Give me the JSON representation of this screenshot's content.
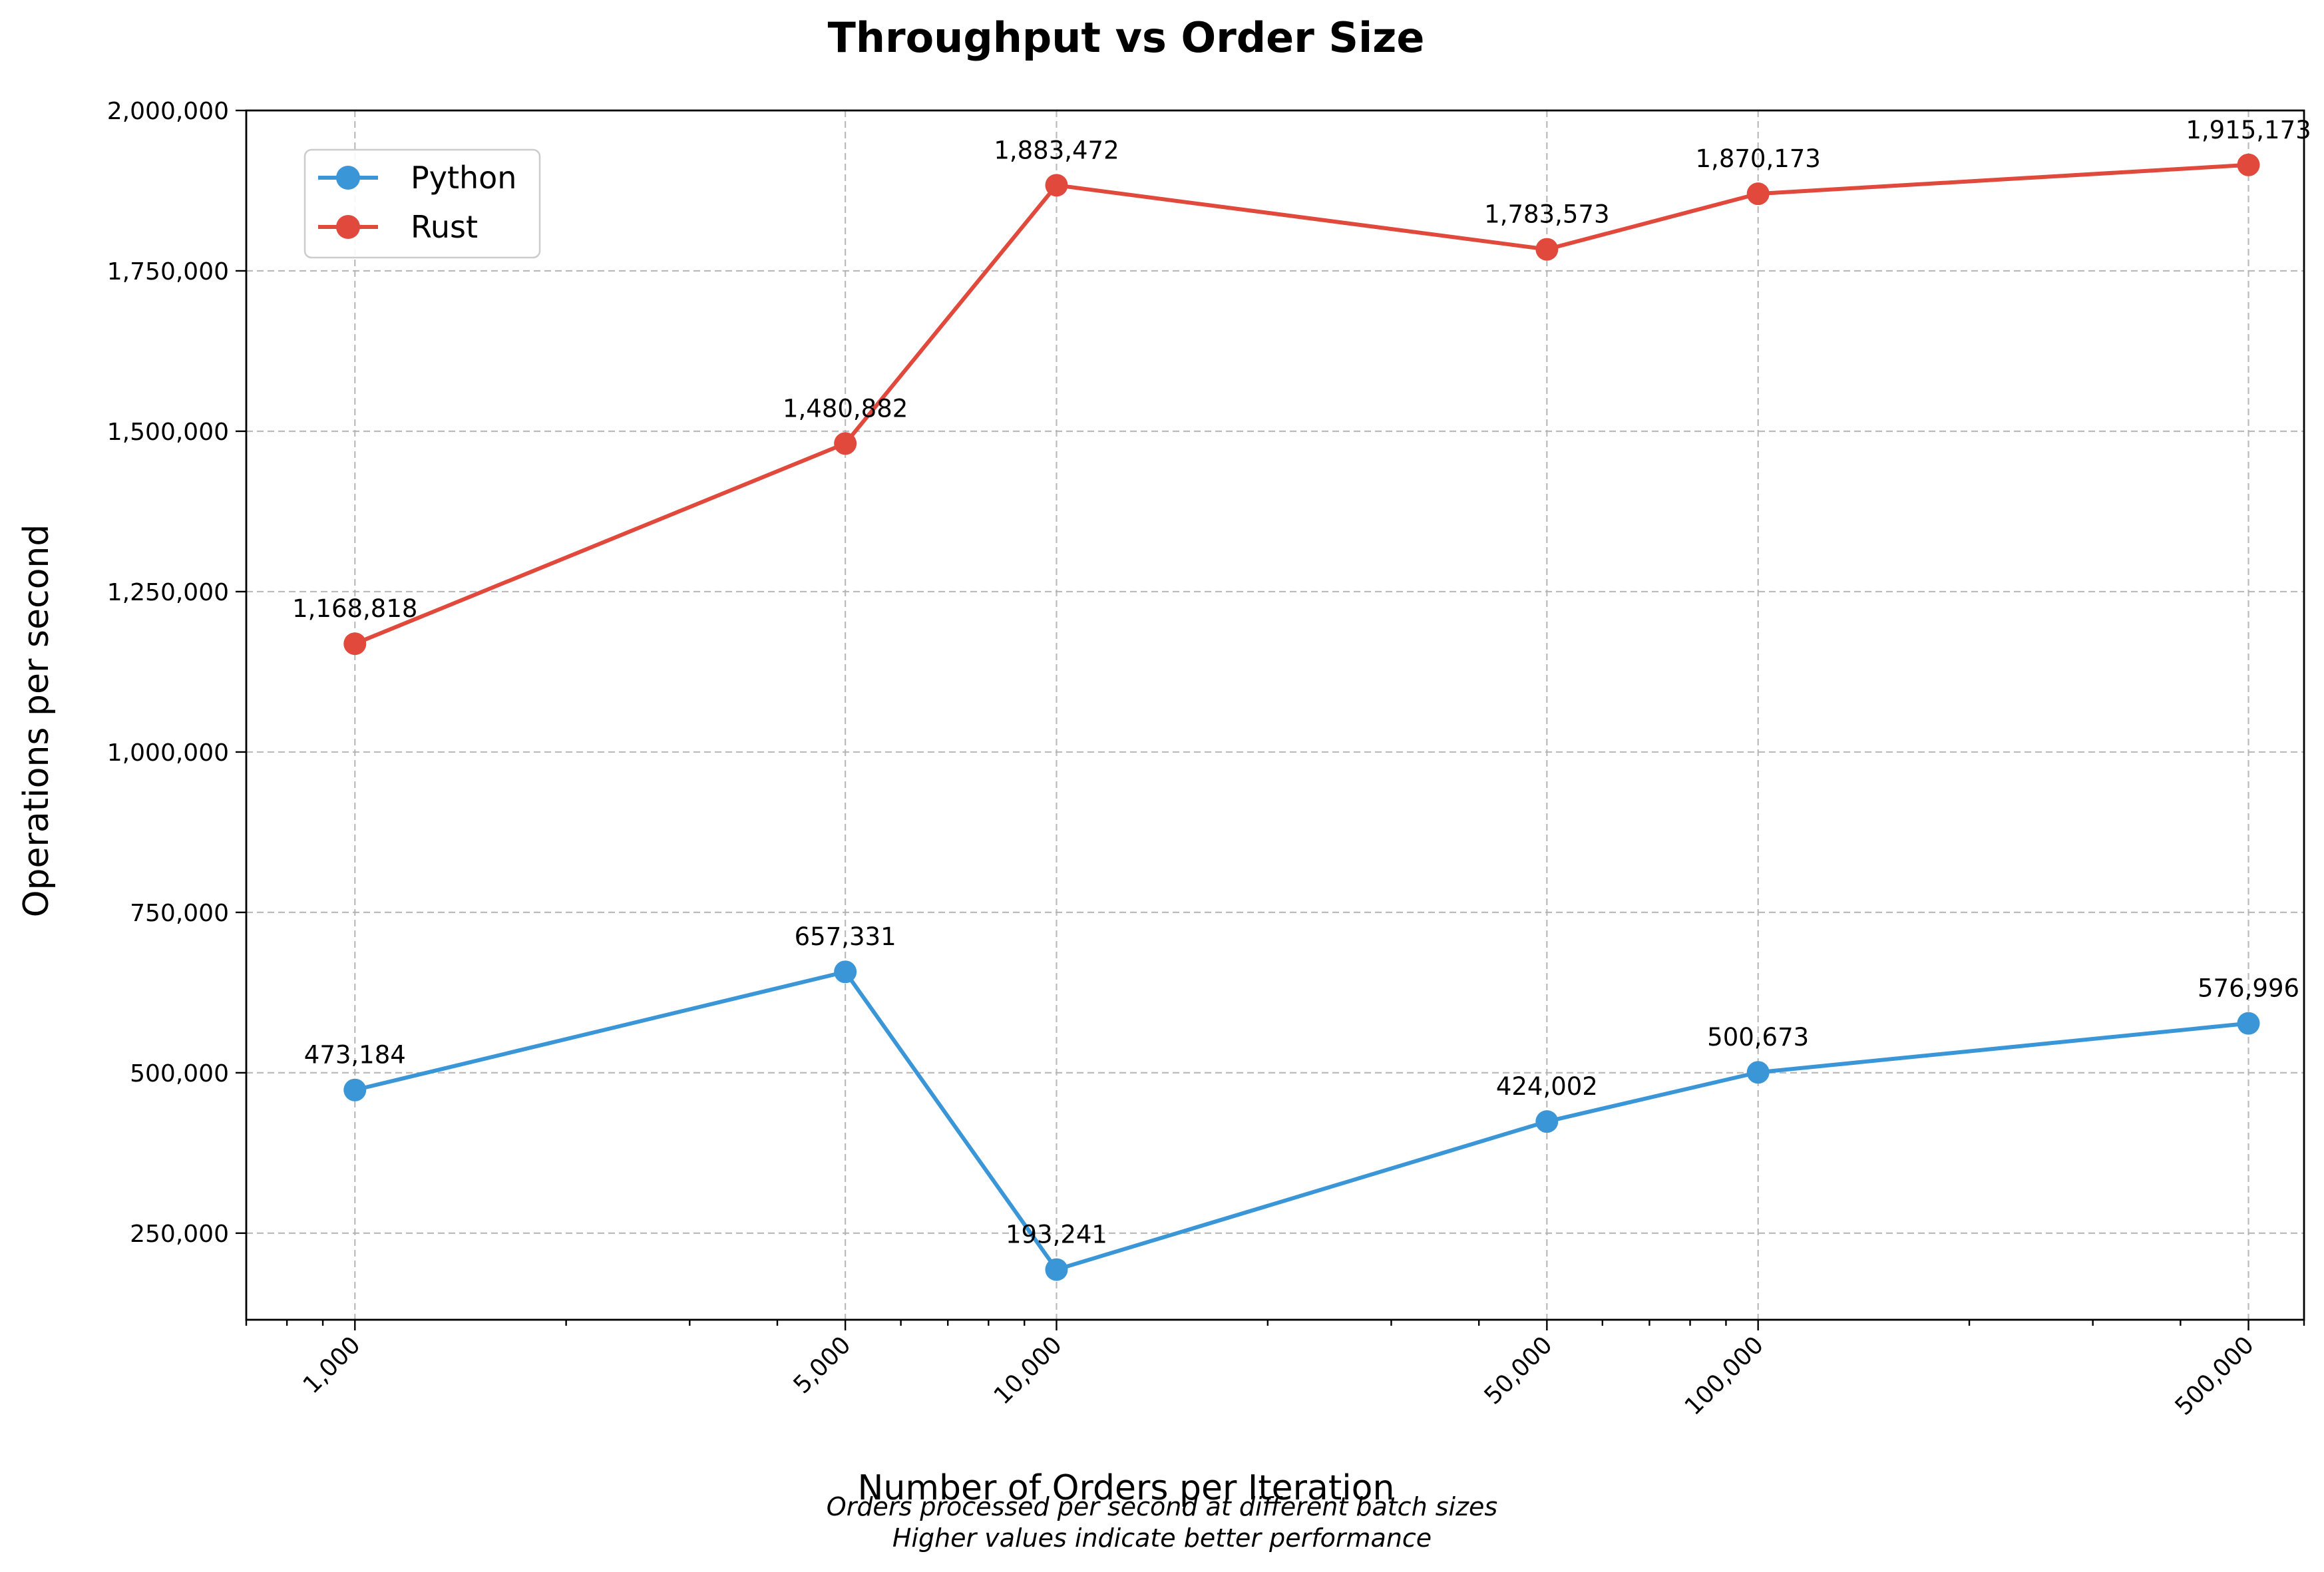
{
  "chart_data": {
    "type": "line",
    "title": "Throughput vs Order Size",
    "xlabel": "Number of Orders per Iteration",
    "ylabel": "Operations per second",
    "caption_lines": [
      "Orders processed per second at different batch sizes",
      "Higher values indicate better performance"
    ],
    "x_scale": "log",
    "x": [
      1000,
      5000,
      10000,
      50000,
      100000,
      500000
    ],
    "x_tick_labels": [
      "1,000",
      "5,000",
      "10,000",
      "50,000",
      "100,000",
      "500,000"
    ],
    "xlim": [
      700,
      600000
    ],
    "ylim": [
      115000,
      2000000
    ],
    "y_ticks": [
      250000,
      500000,
      750000,
      1000000,
      1250000,
      1500000,
      1750000,
      2000000
    ],
    "y_tick_labels": [
      "250,000",
      "500,000",
      "750,000",
      "1,000,000",
      "1,250,000",
      "1,500,000",
      "1,750,000",
      "2,000,000"
    ],
    "grid": true,
    "legend_position": "top-left",
    "series": [
      {
        "name": "Python",
        "color": "#3a96d6",
        "values": [
          473184,
          657331,
          193241,
          424002,
          500673,
          576996
        ],
        "labels": [
          "473,184",
          "657,331",
          "193,241",
          "424,002",
          "500,673",
          "576,996"
        ]
      },
      {
        "name": "Rust",
        "color": "#e0493b",
        "values": [
          1168818,
          1480882,
          1883472,
          1783573,
          1870173,
          1915173
        ],
        "labels": [
          "1,168,818",
          "1,480,882",
          "1,883,472",
          "1,783,573",
          "1,870,173",
          "1,915,173"
        ]
      }
    ]
  }
}
